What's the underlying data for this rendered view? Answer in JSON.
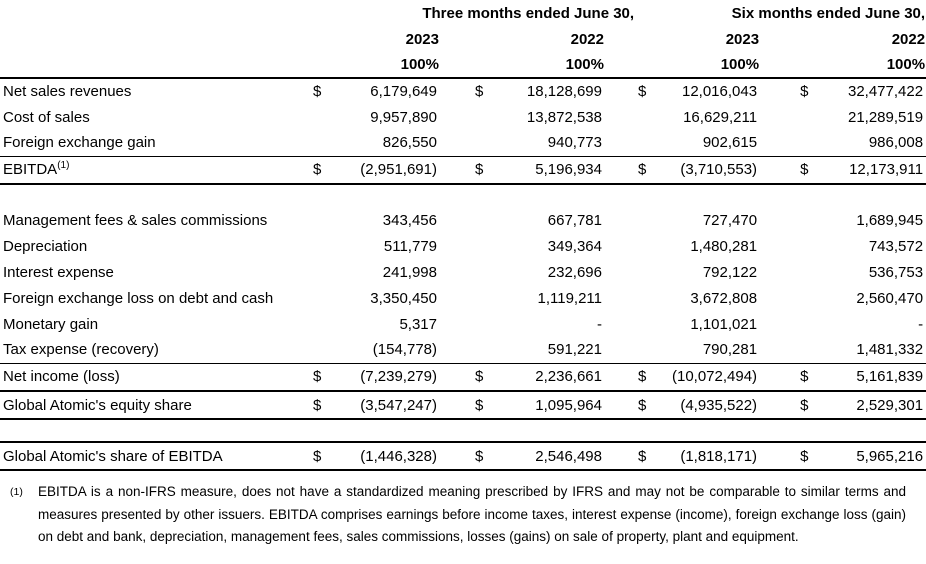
{
  "currency_symbol": "$",
  "header": {
    "groups": [
      "Three months ended June 30,",
      "Six months ended June 30,"
    ],
    "years": [
      "2023",
      "2022",
      "2023",
      "2022"
    ],
    "percents": [
      "100%",
      "100%",
      "100%",
      "100%"
    ]
  },
  "table": {
    "rows": [
      {
        "label": "Net sales revenues",
        "dollar": true,
        "values": [
          "6,179,649",
          "18,128,699",
          "12,016,043",
          "32,477,422"
        ]
      },
      {
        "label": "Cost of sales",
        "values": [
          "9,957,890",
          "13,872,538",
          "16,629,211",
          "21,289,519"
        ]
      },
      {
        "label": "Foreign exchange gain",
        "values": [
          "826,550",
          "940,773",
          "902,615",
          "986,008"
        ]
      },
      {
        "label": "EBITDA",
        "sup": "(1)",
        "dollar": true,
        "values": [
          "(2,951,691)",
          "5,196,934",
          "(3,710,553)",
          "12,173,911"
        ],
        "rules": "top-thin bottom-thick",
        "tall": true
      },
      {
        "spacer": true
      },
      {
        "label": "Management fees & sales commissions",
        "values": [
          "343,456",
          "667,781",
          "727,470",
          "1,689,945"
        ]
      },
      {
        "label": "Depreciation",
        "values": [
          "511,779",
          "349,364",
          "1,480,281",
          "743,572"
        ]
      },
      {
        "label": "Interest expense",
        "values": [
          "241,998",
          "232,696",
          "792,122",
          "536,753"
        ]
      },
      {
        "label": "Foreign exchange loss on debt and cash",
        "values": [
          "3,350,450",
          "1,119,211",
          "3,672,808",
          "2,560,470"
        ]
      },
      {
        "label": "Monetary gain",
        "values": [
          "5,317",
          "-",
          "1,101,021",
          "-"
        ]
      },
      {
        "label": "Tax expense (recovery)",
        "values": [
          "(154,778)",
          "591,221",
          "790,281",
          "1,481,332"
        ]
      },
      {
        "label": "Net income (loss)",
        "dollar": true,
        "values": [
          "(7,239,279)",
          "2,236,661",
          "(10,072,494)",
          "5,161,839"
        ],
        "rules": "top-thin bottom-thick",
        "tall": true
      },
      {
        "label": "Global Atomic's equity share",
        "dollar": true,
        "values": [
          "(3,547,247)",
          "1,095,964",
          "(4,935,522)",
          "2,529,301"
        ],
        "rules": "bottom-thick",
        "tall": true
      },
      {
        "spacer": true
      },
      {
        "label": "Global Atomic's share of EBITDA",
        "dollar": true,
        "values": [
          "(1,446,328)",
          "2,546,498",
          "(1,818,171)",
          "5,965,216"
        ],
        "rules": "top-thick bottom-thick",
        "tall": true
      }
    ]
  },
  "footnote": {
    "marker": "(1)",
    "text": "EBITDA is a non-IFRS measure, does not have a standardized meaning prescribed by IFRS and may not be comparable to similar terms and measures presented by other issuers. EBITDA comprises earnings before income taxes, interest expense (income), foreign exchange loss (gain) on debt and bank, depreciation, management fees, sales commissions, losses (gains) on sale of property, plant and equipment."
  }
}
